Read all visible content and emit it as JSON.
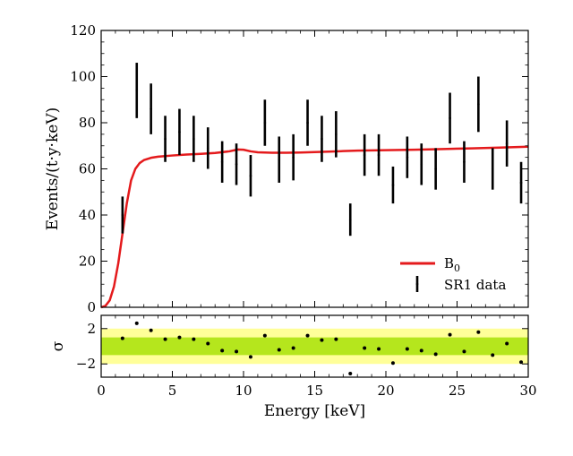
{
  "chart_data": [
    {
      "type": "line",
      "panel": "main",
      "xlabel": "",
      "ylabel": "Events/(t·y·keV)",
      "xlim": [
        0,
        30
      ],
      "ylim": [
        0,
        120
      ],
      "x_ticks": [
        0,
        5,
        10,
        15,
        20,
        25,
        30
      ],
      "y_ticks": [
        0,
        20,
        40,
        60,
        80,
        100,
        120
      ],
      "grid": false,
      "legend_position": "bottom-right",
      "series": [
        {
          "name": "B0",
          "legend_label": "B",
          "legend_subscript": "0",
          "kind": "line",
          "color": "#e41a1c",
          "x": [
            0,
            0.3,
            0.6,
            0.9,
            1.2,
            1.5,
            1.8,
            2.1,
            2.4,
            2.7,
            3.0,
            3.5,
            4.0,
            5.0,
            6.0,
            7.0,
            8.0,
            9.0,
            9.6,
            10.0,
            10.5,
            11.0,
            12.0,
            13.0,
            14.0,
            15.0,
            16.0,
            17.0,
            18.0,
            20.0,
            22.0,
            24.0,
            26.0,
            28.0,
            30.0
          ],
          "y": [
            0,
            0.6,
            3,
            9,
            19,
            32,
            45,
            55,
            60,
            62.5,
            63.8,
            64.8,
            65.3,
            65.8,
            66.2,
            66.5,
            66.9,
            67.6,
            68.4,
            68.3,
            67.6,
            67.2,
            67.0,
            67.0,
            67.1,
            67.3,
            67.5,
            67.7,
            67.9,
            68.1,
            68.3,
            68.6,
            68.9,
            69.2,
            69.6
          ]
        },
        {
          "name": "SR1 data",
          "kind": "errorbar",
          "color": "#000000",
          "x": [
            1.5,
            2.5,
            3.5,
            4.5,
            5.5,
            6.5,
            7.5,
            8.5,
            9.5,
            10.5,
            11.5,
            12.5,
            13.5,
            14.5,
            15.5,
            16.5,
            17.5,
            18.5,
            19.5,
            20.5,
            21.5,
            22.5,
            23.5,
            24.5,
            25.5,
            26.5,
            27.5,
            28.5,
            29.5
          ],
          "y": [
            40,
            94,
            86,
            73,
            76,
            73,
            69,
            63,
            62,
            57,
            80,
            64,
            65,
            80,
            73,
            75,
            38,
            66,
            66,
            53,
            65,
            62,
            60,
            82,
            63,
            88,
            60,
            71,
            54
          ],
          "yerr": [
            8,
            12,
            11,
            10,
            10,
            10,
            9,
            9,
            9,
            9,
            10,
            10,
            10,
            10,
            10,
            10,
            7,
            9,
            9,
            8,
            9,
            9,
            9,
            11,
            9,
            12,
            9,
            10,
            9
          ]
        }
      ]
    },
    {
      "type": "scatter",
      "panel": "residual",
      "xlabel": "Energy [keV]",
      "ylabel": "σ",
      "xlim": [
        0,
        30
      ],
      "ylim": [
        -3.5,
        3.5
      ],
      "x_ticks": [
        0,
        5,
        10,
        15,
        20,
        25,
        30
      ],
      "y_ticks": [
        -2,
        2
      ],
      "bands": [
        {
          "range": [
            -2,
            2
          ],
          "color": "#ffff99"
        },
        {
          "range": [
            -1,
            1
          ],
          "color": "#b5e61d"
        }
      ],
      "x": [
        1.5,
        2.5,
        3.5,
        4.5,
        5.5,
        6.5,
        7.5,
        8.5,
        9.5,
        10.5,
        11.5,
        12.5,
        13.5,
        14.5,
        15.5,
        16.5,
        17.5,
        18.5,
        19.5,
        20.5,
        21.5,
        22.5,
        23.5,
        24.5,
        25.5,
        26.5,
        27.5,
        28.5,
        29.5
      ],
      "y": [
        0.9,
        2.6,
        1.8,
        0.8,
        1.0,
        0.8,
        0.3,
        -0.5,
        -0.6,
        -1.2,
        1.2,
        -0.4,
        -0.2,
        1.2,
        0.7,
        0.8,
        -3.1,
        -0.2,
        -0.3,
        -1.9,
        -0.3,
        -0.5,
        -0.9,
        1.3,
        -0.6,
        1.6,
        -1.0,
        0.3,
        -1.8
      ]
    }
  ]
}
